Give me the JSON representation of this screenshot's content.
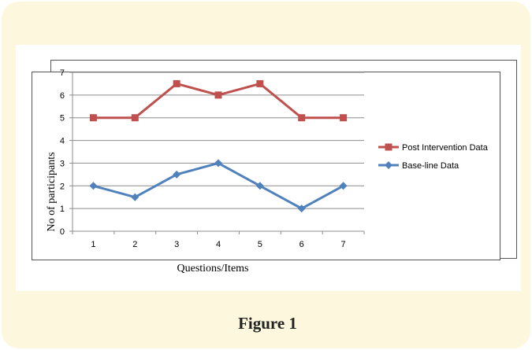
{
  "caption": "Figure 1",
  "chart_data": {
    "type": "line",
    "title": "",
    "xlabel": "Questions/Items",
    "ylabel": "No of participants",
    "categories": [
      "1",
      "2",
      "3",
      "4",
      "5",
      "6",
      "7"
    ],
    "yticks": [
      "0",
      "1",
      "2",
      "3",
      "4",
      "5",
      "6",
      "7"
    ],
    "ylim": [
      0,
      7
    ],
    "grid": true,
    "legend_position": "right",
    "series": [
      {
        "name": "Post Intervention Data",
        "values": [
          5,
          5,
          6.5,
          6,
          6.5,
          5,
          5
        ],
        "color": "#c0504d",
        "marker": "square"
      },
      {
        "name": "Base-line Data",
        "values": [
          2,
          1.5,
          2.5,
          3,
          2,
          1,
          2
        ],
        "color": "#4f81bd",
        "marker": "diamond"
      }
    ]
  }
}
